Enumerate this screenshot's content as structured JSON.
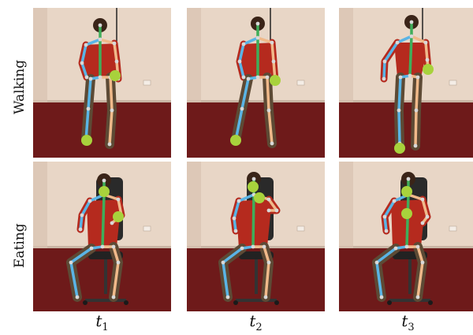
{
  "rows": [
    {
      "label": "Walking"
    },
    {
      "label": "Eating"
    }
  ],
  "columns": [
    {
      "var": "t",
      "sub": "1"
    },
    {
      "var": "t",
      "sub": "2"
    },
    {
      "var": "t",
      "sub": "3"
    }
  ],
  "colors": {
    "wall": "#e8d6c6",
    "floor": "#6e1a1a",
    "limb_right": "#5ab4e5",
    "limb_left": "#f0b98a",
    "torso": "#3fae5a",
    "joint": "#d8d8d8",
    "highlight": "#a8d23c"
  }
}
